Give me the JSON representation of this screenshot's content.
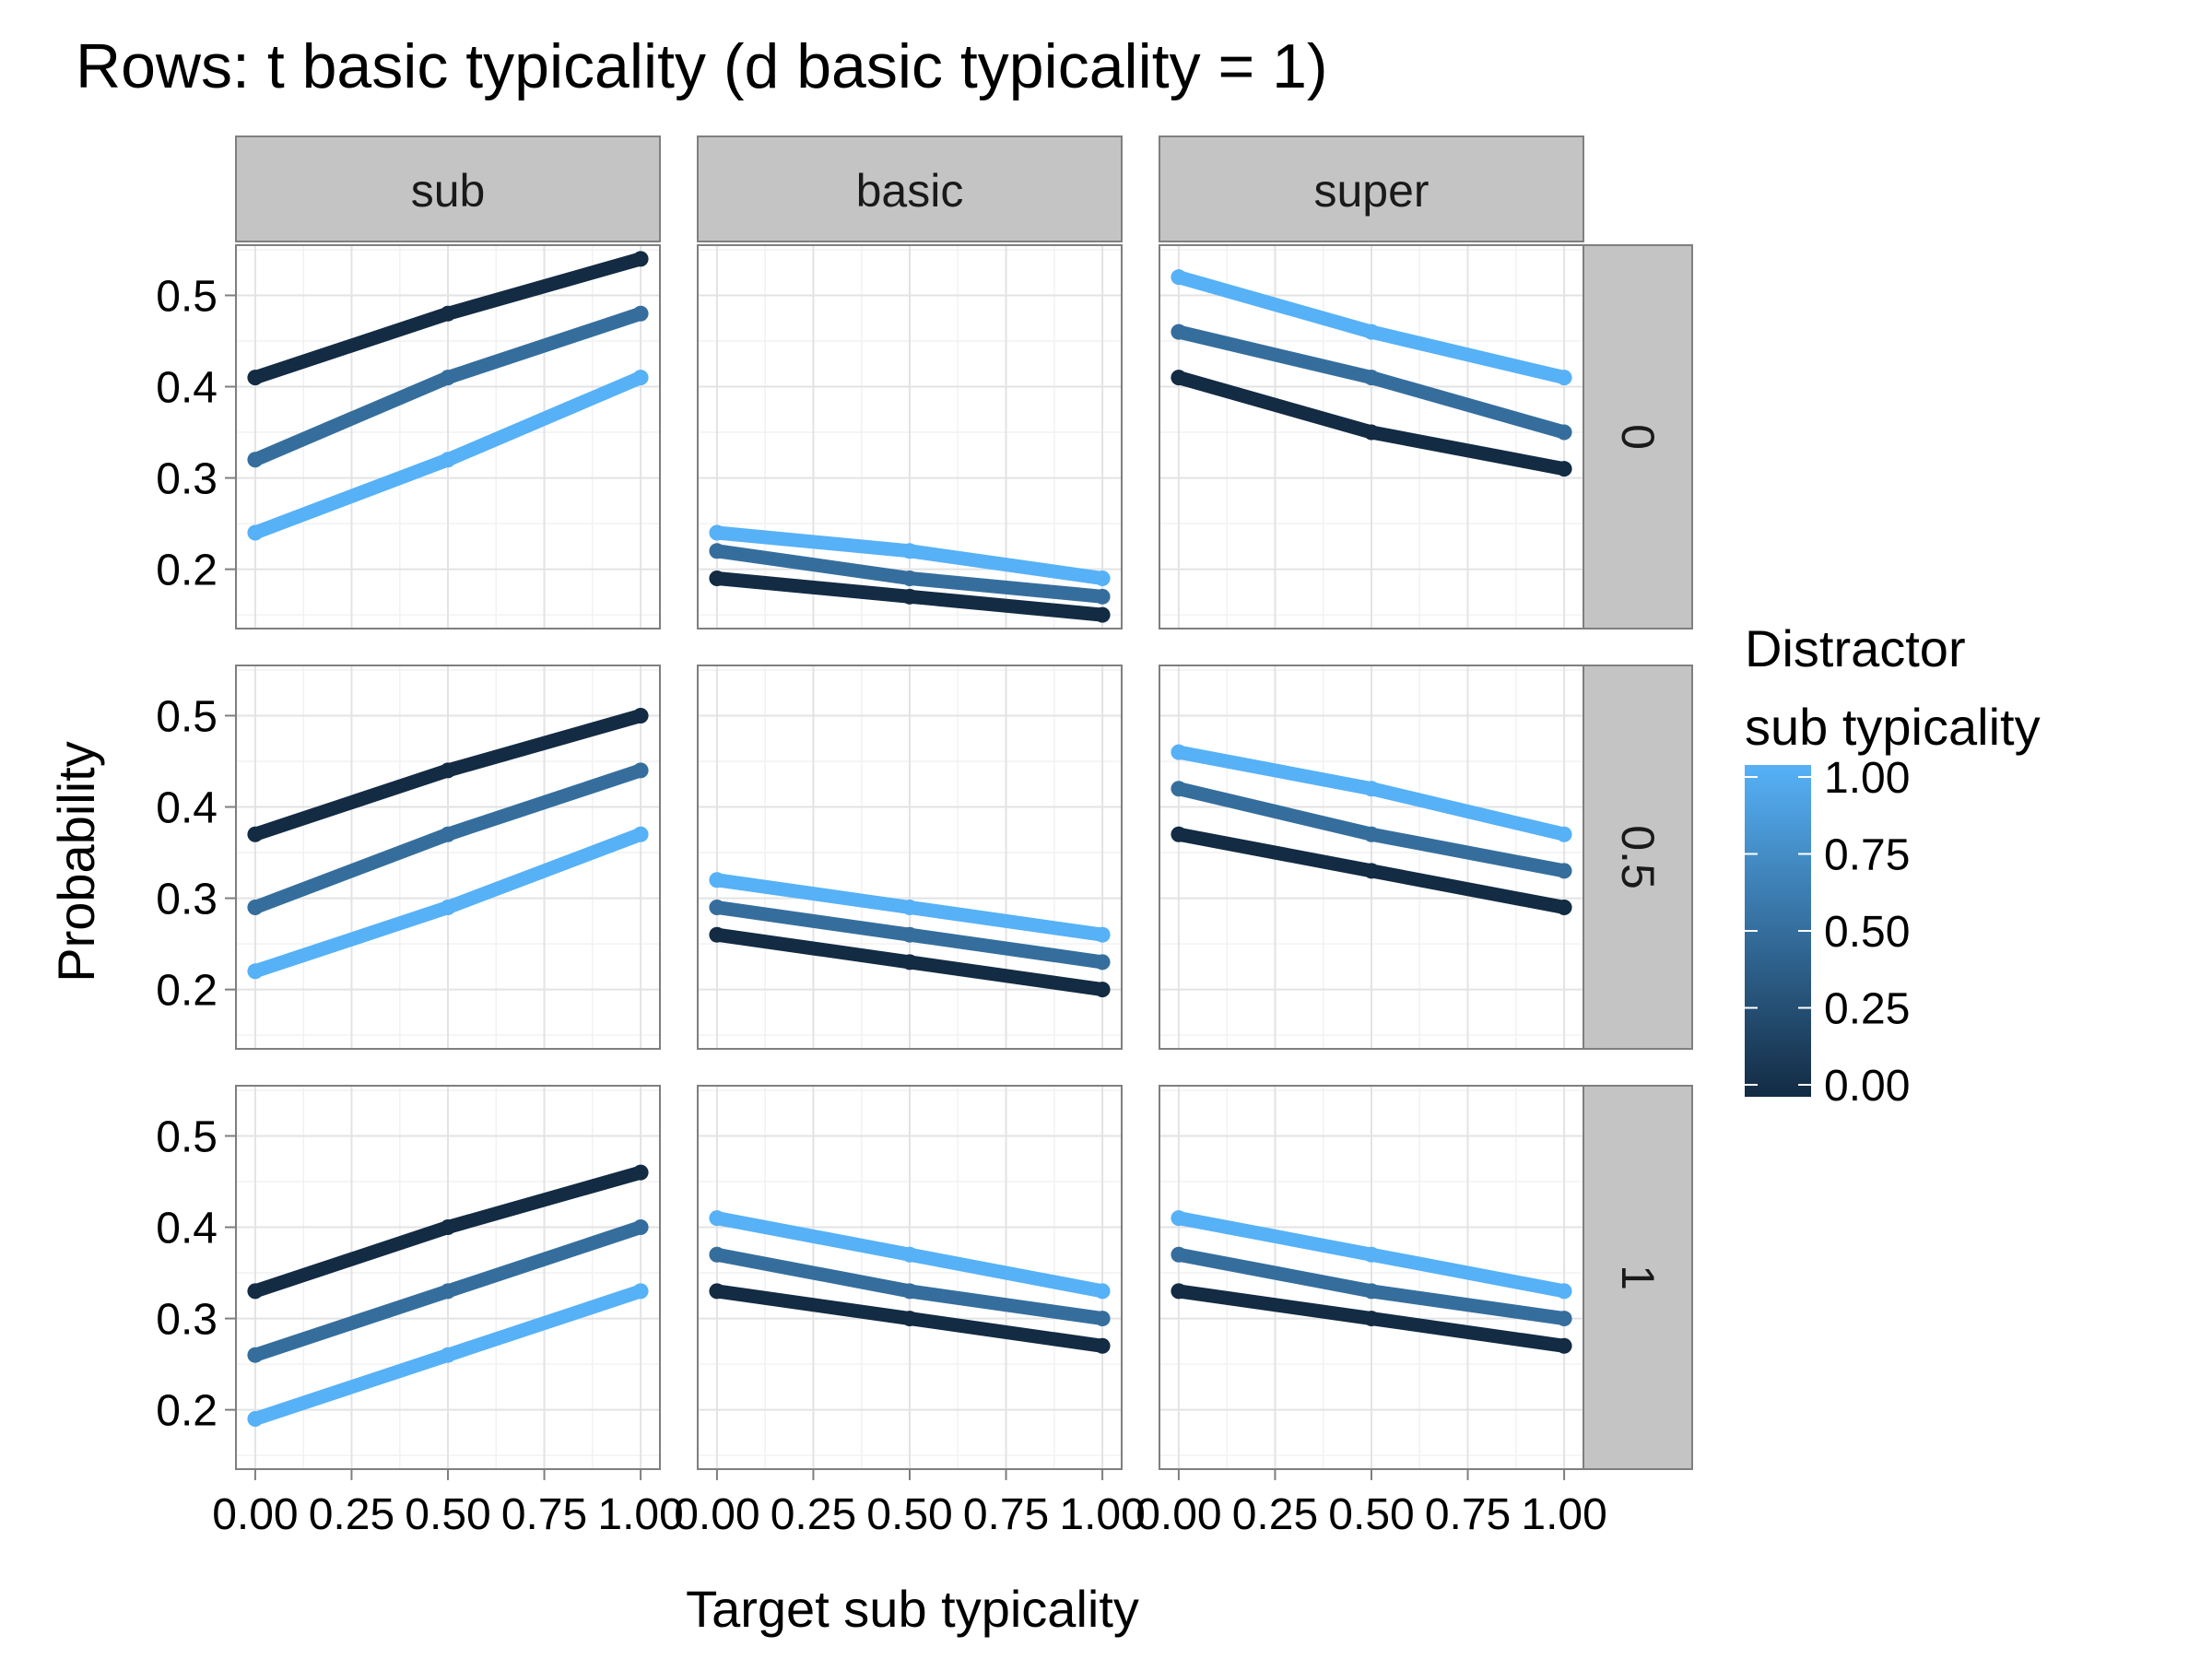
{
  "chart_data": {
    "type": "line",
    "title": "Rows: t basic typicality (d basic typicality = 1)",
    "xlabel": "Target sub typicality",
    "ylabel": "Probability",
    "x": [
      0,
      0.5,
      1
    ],
    "xlim": [
      -0.05,
      1.05
    ],
    "ylim": [
      0.135,
      0.555
    ],
    "x_ticks": [
      "0.00",
      "0.25",
      "0.50",
      "0.75",
      "1.00"
    ],
    "y_ticks": [
      "0.2",
      "0.3",
      "0.4",
      "0.5"
    ],
    "grid": true,
    "columns": [
      "sub",
      "basic",
      "super"
    ],
    "rows": [
      "0",
      "0.5",
      "1"
    ],
    "legend": {
      "title": "Distractor sub typicality",
      "position": "right",
      "ticks": [
        "1.00",
        "0.75",
        "0.50",
        "0.25",
        "0.00"
      ],
      "color_low": "#132B43",
      "color_high": "#56B1F7"
    },
    "panels": [
      {
        "row": "0",
        "col": "sub",
        "series": [
          {
            "distractor": 0,
            "values": [
              0.41,
              0.48,
              0.54
            ]
          },
          {
            "distractor": 0.5,
            "values": [
              0.32,
              0.41,
              0.48
            ]
          },
          {
            "distractor": 1,
            "values": [
              0.24,
              0.32,
              0.41
            ]
          }
        ]
      },
      {
        "row": "0",
        "col": "basic",
        "series": [
          {
            "distractor": 0,
            "values": [
              0.19,
              0.17,
              0.15
            ]
          },
          {
            "distractor": 0.5,
            "values": [
              0.22,
              0.19,
              0.17
            ]
          },
          {
            "distractor": 1,
            "values": [
              0.24,
              0.22,
              0.19
            ]
          }
        ]
      },
      {
        "row": "0",
        "col": "super",
        "series": [
          {
            "distractor": 0,
            "values": [
              0.41,
              0.35,
              0.31
            ]
          },
          {
            "distractor": 0.5,
            "values": [
              0.46,
              0.41,
              0.35
            ]
          },
          {
            "distractor": 1,
            "values": [
              0.52,
              0.46,
              0.41
            ]
          }
        ]
      },
      {
        "row": "0.5",
        "col": "sub",
        "series": [
          {
            "distractor": 0,
            "values": [
              0.37,
              0.44,
              0.5
            ]
          },
          {
            "distractor": 0.5,
            "values": [
              0.29,
              0.37,
              0.44
            ]
          },
          {
            "distractor": 1,
            "values": [
              0.22,
              0.29,
              0.37
            ]
          }
        ]
      },
      {
        "row": "0.5",
        "col": "basic",
        "series": [
          {
            "distractor": 0,
            "values": [
              0.26,
              0.23,
              0.2
            ]
          },
          {
            "distractor": 0.5,
            "values": [
              0.29,
              0.26,
              0.23
            ]
          },
          {
            "distractor": 1,
            "values": [
              0.32,
              0.29,
              0.26
            ]
          }
        ]
      },
      {
        "row": "0.5",
        "col": "super",
        "series": [
          {
            "distractor": 0,
            "values": [
              0.37,
              0.33,
              0.29
            ]
          },
          {
            "distractor": 0.5,
            "values": [
              0.42,
              0.37,
              0.33
            ]
          },
          {
            "distractor": 1,
            "values": [
              0.46,
              0.42,
              0.37
            ]
          }
        ]
      },
      {
        "row": "1",
        "col": "sub",
        "series": [
          {
            "distractor": 0,
            "values": [
              0.33,
              0.4,
              0.46
            ]
          },
          {
            "distractor": 0.5,
            "values": [
              0.26,
              0.33,
              0.4
            ]
          },
          {
            "distractor": 1,
            "values": [
              0.19,
              0.26,
              0.33
            ]
          }
        ]
      },
      {
        "row": "1",
        "col": "basic",
        "series": [
          {
            "distractor": 0,
            "values": [
              0.33,
              0.3,
              0.27
            ]
          },
          {
            "distractor": 0.5,
            "values": [
              0.37,
              0.33,
              0.3
            ]
          },
          {
            "distractor": 1,
            "values": [
              0.41,
              0.37,
              0.33
            ]
          }
        ]
      },
      {
        "row": "1",
        "col": "super",
        "series": [
          {
            "distractor": 0,
            "values": [
              0.33,
              0.3,
              0.27
            ]
          },
          {
            "distractor": 0.5,
            "values": [
              0.37,
              0.33,
              0.3
            ]
          },
          {
            "distractor": 1,
            "values": [
              0.41,
              0.37,
              0.33
            ]
          }
        ]
      }
    ]
  }
}
